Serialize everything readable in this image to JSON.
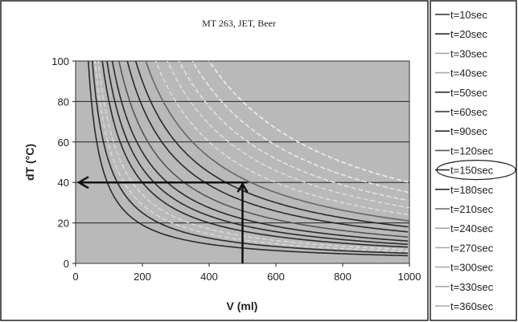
{
  "chart_data": {
    "type": "line",
    "title": "MT 263, JET, Beer",
    "xlabel": "V (ml)",
    "ylabel": "dT (°C)",
    "xlim": [
      0,
      1000
    ],
    "ylim": [
      0,
      100
    ],
    "x_ticks": [
      "0",
      "200",
      "400",
      "600",
      "800",
      "1000"
    ],
    "y_ticks": [
      "0",
      "20",
      "40",
      "60",
      "80",
      "100"
    ],
    "grid": "horizontal",
    "legend_position": "right",
    "highlighted_series": "t=150sec",
    "annotation": {
      "x": 500,
      "y": 40
    },
    "model": "dT = k / V",
    "series": [
      {
        "name": "t=10sec",
        "k": 3800,
        "color": "#2a2a2a"
      },
      {
        "name": "t=20sec",
        "k": 5000,
        "color": "#2a2a2a"
      },
      {
        "name": "t=30sec",
        "k": 5800,
        "color": "#d8d8d8"
      },
      {
        "name": "t=40sec",
        "k": 6800,
        "color": "#d8d8d8"
      },
      {
        "name": "t=50sec",
        "k": 8000,
        "color": "#2a2a2a"
      },
      {
        "name": "t=60sec",
        "k": 9400,
        "color": "#2a2a2a"
      },
      {
        "name": "t=90sec",
        "k": 11000,
        "color": "#2a2a2a"
      },
      {
        "name": "t=120sec",
        "k": 13000,
        "color": "#555555"
      },
      {
        "name": "t=150sec",
        "k": 15500,
        "color": "#2a2a2a"
      },
      {
        "name": "t=180sec",
        "k": 18000,
        "color": "#2a2a2a"
      },
      {
        "name": "t=210sec",
        "k": 21000,
        "color": "#666666"
      },
      {
        "name": "t=240sec",
        "k": 24000,
        "color": "#dcdcdc"
      },
      {
        "name": "t=270sec",
        "k": 27500,
        "color": "#dcdcdc"
      },
      {
        "name": "t=300sec",
        "k": 31000,
        "color": "#e4e4e4"
      },
      {
        "name": "t=330sec",
        "k": 35000,
        "color": "#e8e8e8"
      },
      {
        "name": "t=360sec",
        "k": 40000,
        "color": "#eeeeee"
      }
    ]
  }
}
